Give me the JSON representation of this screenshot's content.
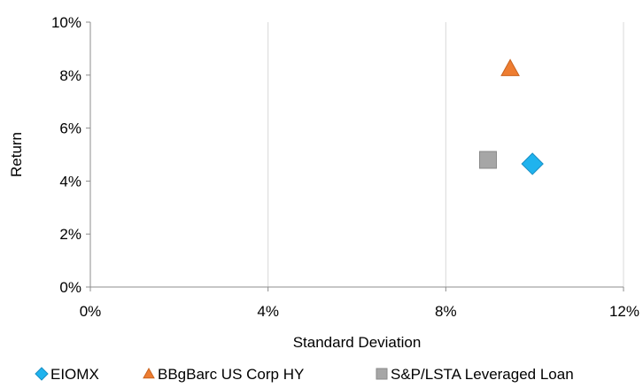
{
  "chart_data": {
    "type": "scatter",
    "title": "",
    "xlabel": "Standard Deviation",
    "ylabel": "Return",
    "xlim": [
      0,
      12
    ],
    "ylim": [
      0,
      10
    ],
    "x_ticks": [
      0,
      4,
      8,
      12
    ],
    "y_ticks": [
      0,
      2,
      4,
      6,
      8,
      10
    ],
    "x_tick_labels": [
      "0%",
      "4%",
      "8%",
      "12%"
    ],
    "y_tick_labels": [
      "0%",
      "2%",
      "4%",
      "6%",
      "8%",
      "10%"
    ],
    "grid": "vertical",
    "legend_position": "bottom",
    "series": [
      {
        "name": "EIOMX",
        "marker": "diamond",
        "color": "#1FB3EE",
        "x": 9.95,
        "y": 4.65
      },
      {
        "name": "BBgBarc US Corp HY",
        "marker": "triangle",
        "color": "#EE7D31",
        "x": 9.45,
        "y": 8.25
      },
      {
        "name": "S&P/LSTA Leveraged Loan",
        "marker": "square",
        "color": "#A6A6A6",
        "x": 8.95,
        "y": 4.8
      }
    ]
  }
}
